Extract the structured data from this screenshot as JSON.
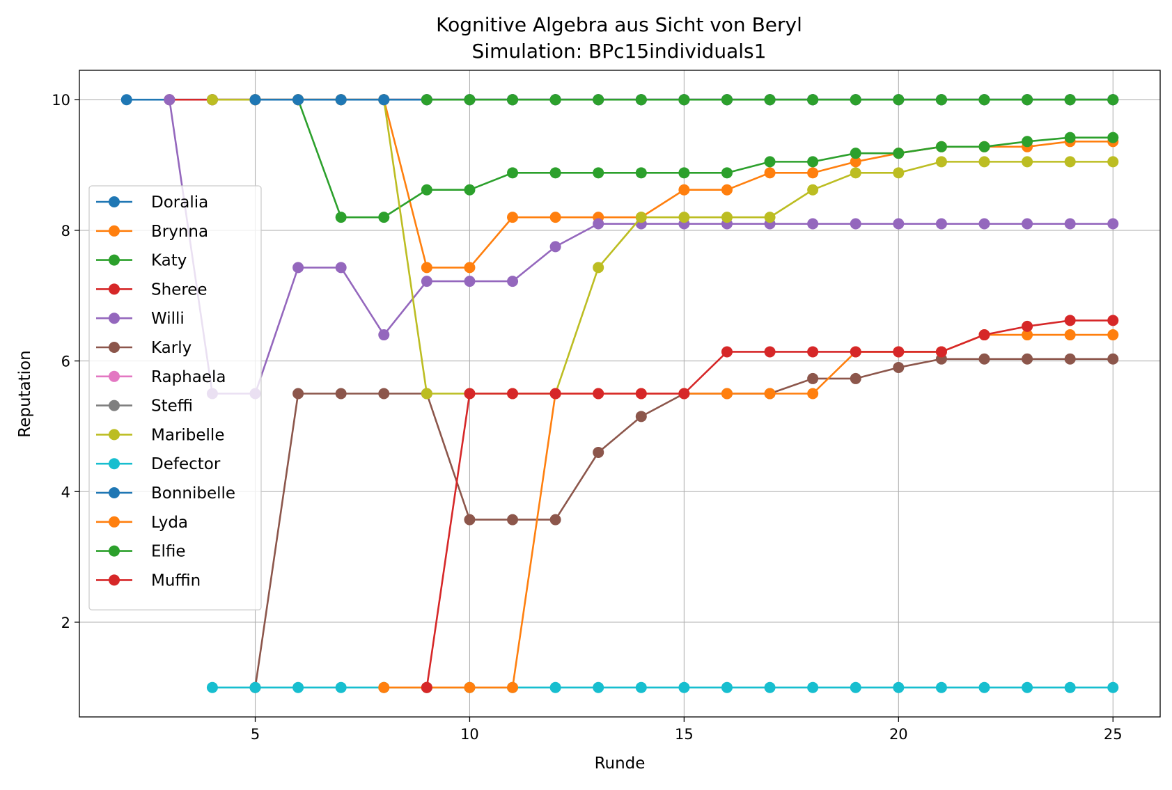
{
  "chart_data": {
    "type": "line",
    "title": "Kognitive Algebra aus Sicht von Beryl",
    "subtitle": "Simulation: BPc15individuals1",
    "xlabel": "Runde",
    "ylabel": "Reputation",
    "xlim": [
      0.9,
      26.1
    ],
    "ylim": [
      0.55,
      10.45
    ],
    "xticks": [
      5,
      10,
      15,
      20,
      25
    ],
    "yticks": [
      2,
      4,
      6,
      8,
      10
    ],
    "grid": true,
    "legend_position": "center-left",
    "series": [
      {
        "name": "Doralia",
        "color": "#1f77b4",
        "points": [
          [
            2,
            10
          ],
          [
            3,
            10
          ],
          [
            4,
            10
          ],
          [
            5,
            10
          ],
          [
            6,
            10
          ],
          [
            7,
            10
          ],
          [
            8,
            10
          ],
          [
            9,
            10
          ],
          [
            10,
            10
          ],
          [
            11,
            10
          ],
          [
            12,
            10
          ],
          [
            13,
            10
          ],
          [
            14,
            10
          ],
          [
            15,
            10
          ],
          [
            16,
            10
          ],
          [
            17,
            10
          ],
          [
            18,
            10
          ],
          [
            19,
            10
          ],
          [
            20,
            10
          ],
          [
            21,
            10
          ],
          [
            22,
            10
          ],
          [
            23,
            10
          ],
          [
            24,
            10
          ],
          [
            25,
            10
          ]
        ]
      },
      {
        "name": "Brynna",
        "color": "#ff7f0e",
        "points": [
          [
            8,
            10
          ],
          [
            9,
            7.43
          ],
          [
            10,
            7.43
          ],
          [
            11,
            8.2
          ],
          [
            12,
            8.2
          ],
          [
            13,
            8.2
          ],
          [
            14,
            8.2
          ],
          [
            15,
            8.62
          ],
          [
            16,
            8.62
          ],
          [
            17,
            8.88
          ],
          [
            18,
            8.88
          ],
          [
            19,
            9.05
          ],
          [
            20,
            9.18
          ],
          [
            21,
            9.28
          ],
          [
            22,
            9.28
          ],
          [
            23,
            9.28
          ],
          [
            24,
            9.36
          ],
          [
            25,
            9.36
          ]
        ]
      },
      {
        "name": "Katy",
        "color": "#2ca02c",
        "points": [
          [
            6,
            10
          ],
          [
            7,
            8.2
          ],
          [
            8,
            8.2
          ],
          [
            9,
            8.62
          ],
          [
            10,
            8.62
          ],
          [
            11,
            8.88
          ],
          [
            12,
            8.88
          ],
          [
            13,
            8.88
          ],
          [
            14,
            8.88
          ],
          [
            15,
            8.88
          ],
          [
            16,
            8.88
          ],
          [
            17,
            9.05
          ],
          [
            18,
            9.05
          ],
          [
            19,
            9.18
          ],
          [
            20,
            9.18
          ],
          [
            21,
            9.28
          ],
          [
            22,
            9.28
          ],
          [
            23,
            9.36
          ],
          [
            24,
            9.42
          ],
          [
            25,
            9.42
          ]
        ]
      },
      {
        "name": "Sheree",
        "color": "#d62728",
        "points": [
          [
            3,
            10
          ],
          [
            4,
            10
          ],
          [
            5,
            10
          ],
          [
            6,
            10
          ],
          [
            7,
            10
          ],
          [
            8,
            10
          ],
          [
            9,
            10
          ],
          [
            10,
            10
          ],
          [
            11,
            10
          ],
          [
            12,
            10
          ],
          [
            13,
            10
          ],
          [
            14,
            10
          ],
          [
            15,
            10
          ],
          [
            16,
            10
          ],
          [
            17,
            10
          ],
          [
            18,
            10
          ],
          [
            19,
            10
          ],
          [
            20,
            10
          ],
          [
            21,
            10
          ],
          [
            22,
            10
          ],
          [
            23,
            10
          ],
          [
            24,
            10
          ],
          [
            25,
            10
          ]
        ]
      },
      {
        "name": "Willi",
        "color": "#9467bd",
        "points": [
          [
            3,
            10
          ],
          [
            4,
            5.5
          ],
          [
            5,
            5.5
          ],
          [
            6,
            7.43
          ],
          [
            7,
            7.43
          ],
          [
            8,
            6.4
          ],
          [
            9,
            7.22
          ],
          [
            10,
            7.22
          ],
          [
            11,
            7.22
          ],
          [
            12,
            7.75
          ],
          [
            13,
            8.1
          ],
          [
            14,
            8.1
          ],
          [
            15,
            8.1
          ],
          [
            16,
            8.1
          ],
          [
            17,
            8.1
          ],
          [
            18,
            8.1
          ],
          [
            19,
            8.1
          ],
          [
            20,
            8.1
          ],
          [
            21,
            8.1
          ],
          [
            22,
            8.1
          ],
          [
            23,
            8.1
          ],
          [
            24,
            8.1
          ],
          [
            25,
            8.1
          ]
        ]
      },
      {
        "name": "Karly",
        "color": "#8c564b",
        "points": [
          [
            5,
            1
          ],
          [
            6,
            5.5
          ],
          [
            7,
            5.5
          ],
          [
            8,
            5.5
          ],
          [
            9,
            5.5
          ],
          [
            10,
            3.57
          ],
          [
            11,
            3.57
          ],
          [
            12,
            3.57
          ],
          [
            13,
            4.6
          ],
          [
            14,
            5.15
          ],
          [
            15,
            5.5
          ],
          [
            16,
            5.5
          ],
          [
            17,
            5.5
          ],
          [
            18,
            5.73
          ],
          [
            19,
            5.73
          ],
          [
            20,
            5.9
          ],
          [
            21,
            6.03
          ],
          [
            22,
            6.03
          ],
          [
            23,
            6.03
          ],
          [
            24,
            6.03
          ],
          [
            25,
            6.03
          ]
        ]
      },
      {
        "name": "Raphaela",
        "color": "#e377c2",
        "points": [
          [
            4,
            10
          ],
          [
            5,
            10
          ],
          [
            6,
            10
          ],
          [
            7,
            10
          ],
          [
            8,
            10
          ],
          [
            9,
            10
          ],
          [
            10,
            10
          ],
          [
            11,
            10
          ],
          [
            12,
            10
          ],
          [
            13,
            10
          ],
          [
            14,
            10
          ],
          [
            15,
            10
          ],
          [
            16,
            10
          ],
          [
            17,
            10
          ],
          [
            18,
            10
          ],
          [
            19,
            10
          ],
          [
            20,
            10
          ],
          [
            21,
            10
          ],
          [
            22,
            10
          ],
          [
            23,
            10
          ],
          [
            24,
            10
          ],
          [
            25,
            10
          ]
        ]
      },
      {
        "name": "Steffi",
        "color": "#7f7f7f",
        "points": [
          [
            4,
            10
          ],
          [
            5,
            10
          ],
          [
            6,
            10
          ],
          [
            7,
            10
          ],
          [
            8,
            10
          ],
          [
            9,
            10
          ],
          [
            10,
            10
          ],
          [
            11,
            10
          ],
          [
            12,
            10
          ],
          [
            13,
            10
          ],
          [
            14,
            10
          ],
          [
            15,
            10
          ],
          [
            16,
            10
          ],
          [
            17,
            10
          ],
          [
            18,
            10
          ],
          [
            19,
            10
          ],
          [
            20,
            10
          ],
          [
            21,
            10
          ],
          [
            22,
            10
          ],
          [
            23,
            10
          ],
          [
            24,
            10
          ],
          [
            25,
            10
          ]
        ]
      },
      {
        "name": "Maribelle",
        "color": "#bcbd22",
        "points": [
          [
            4,
            10
          ],
          [
            5,
            10
          ],
          [
            6,
            10
          ],
          [
            7,
            10
          ],
          [
            8,
            10
          ],
          [
            9,
            5.5
          ],
          [
            10,
            5.5
          ],
          [
            11,
            5.5
          ],
          [
            12,
            5.5
          ],
          [
            13,
            7.43
          ],
          [
            14,
            8.2
          ],
          [
            15,
            8.2
          ],
          [
            16,
            8.2
          ],
          [
            17,
            8.2
          ],
          [
            18,
            8.62
          ],
          [
            19,
            8.88
          ],
          [
            20,
            8.88
          ],
          [
            21,
            9.05
          ],
          [
            22,
            9.05
          ],
          [
            23,
            9.05
          ],
          [
            24,
            9.05
          ],
          [
            25,
            9.05
          ]
        ]
      },
      {
        "name": "Defector",
        "color": "#17becf",
        "points": [
          [
            4,
            1
          ],
          [
            5,
            1
          ],
          [
            6,
            1
          ],
          [
            7,
            1
          ],
          [
            8,
            1
          ],
          [
            9,
            1
          ],
          [
            10,
            1
          ],
          [
            11,
            1
          ],
          [
            12,
            1
          ],
          [
            13,
            1
          ],
          [
            14,
            1
          ],
          [
            15,
            1
          ],
          [
            16,
            1
          ],
          [
            17,
            1
          ],
          [
            18,
            1
          ],
          [
            19,
            1
          ],
          [
            20,
            1
          ],
          [
            21,
            1
          ],
          [
            22,
            1
          ],
          [
            23,
            1
          ],
          [
            24,
            1
          ],
          [
            25,
            1
          ]
        ]
      },
      {
        "name": "Bonnibelle",
        "color": "#1f77b4",
        "points": [
          [
            5,
            10
          ],
          [
            6,
            10
          ],
          [
            7,
            10
          ],
          [
            8,
            10
          ],
          [
            9,
            10
          ],
          [
            10,
            10
          ],
          [
            11,
            10
          ],
          [
            12,
            10
          ],
          [
            13,
            10
          ],
          [
            14,
            10
          ],
          [
            15,
            10
          ],
          [
            16,
            10
          ],
          [
            17,
            10
          ],
          [
            18,
            10
          ],
          [
            19,
            10
          ],
          [
            20,
            10
          ],
          [
            21,
            10
          ],
          [
            22,
            10
          ],
          [
            23,
            10
          ],
          [
            24,
            10
          ],
          [
            25,
            10
          ]
        ]
      },
      {
        "name": "Lyda",
        "color": "#ff7f0e",
        "points": [
          [
            8,
            1
          ],
          [
            9,
            1
          ],
          [
            10,
            1
          ],
          [
            11,
            1
          ],
          [
            12,
            5.5
          ],
          [
            13,
            5.5
          ],
          [
            14,
            5.5
          ],
          [
            15,
            5.5
          ],
          [
            16,
            5.5
          ],
          [
            17,
            5.5
          ],
          [
            18,
            5.5
          ],
          [
            19,
            6.14
          ],
          [
            20,
            6.14
          ],
          [
            21,
            6.14
          ],
          [
            22,
            6.4
          ],
          [
            23,
            6.4
          ],
          [
            24,
            6.4
          ],
          [
            25,
            6.4
          ]
        ]
      },
      {
        "name": "Elfie",
        "color": "#2ca02c",
        "points": [
          [
            9,
            10
          ],
          [
            10,
            10
          ],
          [
            11,
            10
          ],
          [
            12,
            10
          ],
          [
            13,
            10
          ],
          [
            14,
            10
          ],
          [
            15,
            10
          ],
          [
            16,
            10
          ],
          [
            17,
            10
          ],
          [
            18,
            10
          ],
          [
            19,
            10
          ],
          [
            20,
            10
          ],
          [
            21,
            10
          ],
          [
            22,
            10
          ],
          [
            23,
            10
          ],
          [
            24,
            10
          ],
          [
            25,
            10
          ]
        ]
      },
      {
        "name": "Muffin",
        "color": "#d62728",
        "points": [
          [
            9,
            1
          ],
          [
            10,
            5.5
          ],
          [
            11,
            5.5
          ],
          [
            12,
            5.5
          ],
          [
            13,
            5.5
          ],
          [
            14,
            5.5
          ],
          [
            15,
            5.5
          ],
          [
            16,
            6.14
          ],
          [
            17,
            6.14
          ],
          [
            18,
            6.14
          ],
          [
            19,
            6.14
          ],
          [
            20,
            6.14
          ],
          [
            21,
            6.14
          ],
          [
            22,
            6.4
          ],
          [
            23,
            6.53
          ],
          [
            24,
            6.62
          ],
          [
            25,
            6.62
          ]
        ]
      }
    ]
  }
}
